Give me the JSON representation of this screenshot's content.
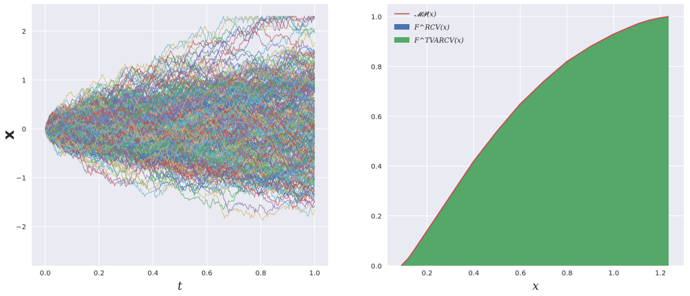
{
  "chart_data": [
    {
      "type": "line",
      "description_panel": "left",
      "xlabel": "t",
      "ylabel": "x",
      "xlim": [
        -0.05,
        1.05
      ],
      "ylim": [
        -2.8,
        2.55
      ],
      "xticks": [
        0.0,
        0.2,
        0.4,
        0.6,
        0.8,
        1.0
      ],
      "xtick_labels": [
        "0.0",
        "0.2",
        "0.4",
        "0.6",
        "0.8",
        "1.0"
      ],
      "yticks": [
        -2,
        -1,
        0,
        1,
        2
      ],
      "ytick_labels": [
        "−2",
        "−1",
        "0",
        "1",
        "2"
      ],
      "grid": true,
      "num_paths": 300,
      "path_range": [
        -2.4,
        2.3
      ],
      "palette": [
        "#4C72B0",
        "#55A868",
        "#C44E52",
        "#8172B2",
        "#CCB974",
        "#64B5CD"
      ]
    },
    {
      "type": "area",
      "description_panel": "right",
      "xlabel": "x",
      "ylabel": "",
      "xlim": [
        0.03,
        1.3
      ],
      "ylim": [
        0.0,
        1.05
      ],
      "xticks": [
        0.2,
        0.4,
        0.6,
        0.8,
        1.0,
        1.2
      ],
      "xtick_labels": [
        "0.2",
        "0.4",
        "0.6",
        "0.8",
        "1.0",
        "1.2"
      ],
      "yticks": [
        0.0,
        0.2,
        0.4,
        0.6,
        0.8,
        1.0
      ],
      "ytick_labels": [
        "0.0",
        "0.2",
        "0.4",
        "0.6",
        "0.8",
        "1.0"
      ],
      "grid": true,
      "legend_position": "upper-left",
      "x": [
        0.09,
        0.1,
        0.12,
        0.15,
        0.2,
        0.25,
        0.3,
        0.4,
        0.5,
        0.6,
        0.7,
        0.8,
        0.9,
        1.0,
        1.1,
        1.15,
        1.2,
        1.235
      ],
      "series": [
        {
          "name": "𝓜𝓟(x)",
          "kind": "line",
          "color": "#C44E52",
          "values": [
            0.0,
            0.01,
            0.03,
            0.07,
            0.14,
            0.21,
            0.28,
            0.42,
            0.54,
            0.65,
            0.74,
            0.82,
            0.88,
            0.93,
            0.97,
            0.985,
            0.995,
            1.0
          ]
        },
        {
          "name": "F^RCV(x)",
          "kind": "fill",
          "color": "#4C72B0",
          "values": [
            0.0,
            0.01,
            0.03,
            0.07,
            0.14,
            0.21,
            0.28,
            0.42,
            0.54,
            0.65,
            0.74,
            0.82,
            0.88,
            0.93,
            0.97,
            0.985,
            0.995,
            1.0
          ]
        },
        {
          "name": "F^TVARCV(x)",
          "kind": "fill",
          "color": "#55A868",
          "values": [
            0.0,
            0.01,
            0.03,
            0.07,
            0.14,
            0.21,
            0.28,
            0.42,
            0.54,
            0.65,
            0.74,
            0.82,
            0.88,
            0.93,
            0.97,
            0.985,
            0.995,
            1.0
          ]
        }
      ]
    }
  ],
  "colors": {
    "panel_bg": "#EAEAF2",
    "grid": "#ffffff"
  }
}
